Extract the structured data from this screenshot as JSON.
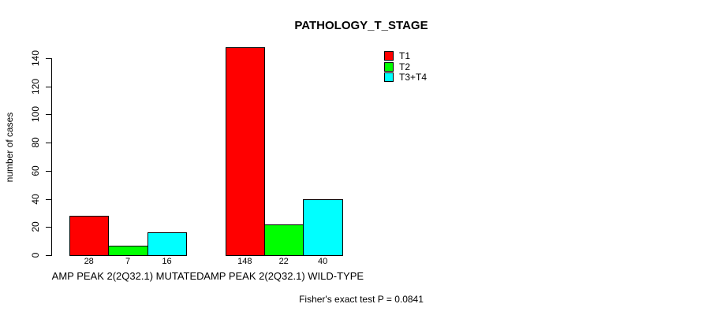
{
  "title": "PATHOLOGY_T_STAGE",
  "ylabel": "number of cases",
  "footer": "Fisher's exact test P = 0.0841",
  "colors": {
    "t1": "#FF0000",
    "t2": "#00FF00",
    "t3t4": "#00FFFF",
    "axis": "#000000",
    "background": "#FFFFFF"
  },
  "legend": [
    {
      "label": "T1",
      "color": "#FF0000"
    },
    {
      "label": "T2",
      "color": "#00FF00"
    },
    {
      "label": "T3+T4",
      "color": "#00FFFF"
    }
  ],
  "chart_data": {
    "type": "bar",
    "title": "PATHOLOGY_T_STAGE",
    "xlabel": "",
    "ylabel": "number of cases",
    "categories": [
      "AMP PEAK 2(2Q32.1) MUTATED",
      "AMP PEAK 2(2Q32.1) WILD-TYPE"
    ],
    "series": [
      {
        "name": "T1",
        "color": "#FF0000",
        "values": [
          28,
          148
        ]
      },
      {
        "name": "T2",
        "color": "#00FF00",
        "values": [
          7,
          22
        ]
      },
      {
        "name": "T3+T4",
        "color": "#00FFFF",
        "values": [
          16,
          40
        ]
      }
    ],
    "bar_count_labels": [
      [
        "28",
        "7",
        "16"
      ],
      [
        "148",
        "22",
        "40"
      ]
    ],
    "yticks": [
      "0",
      "20",
      "40",
      "60",
      "80",
      "100",
      "120",
      "140"
    ],
    "ylim": [
      0,
      140
    ],
    "grid": false,
    "legend_position": "top-right",
    "annotation": "Fisher's exact test P = 0.0841"
  }
}
